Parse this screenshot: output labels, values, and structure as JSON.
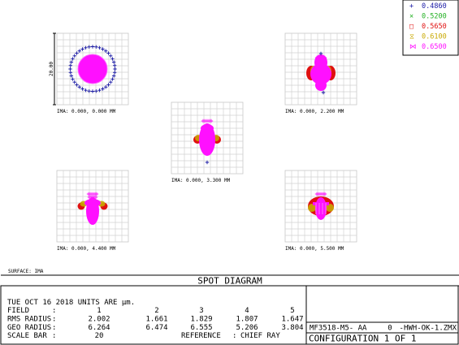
{
  "chart_data": {
    "type": "scatter",
    "title": "SPOT DIAGRAM",
    "wavelengths": [
      {
        "marker": "+",
        "value": "0.4860",
        "color": "#1a1aa6"
      },
      {
        "marker": "×",
        "value": "0.5200",
        "color": "#22b022"
      },
      {
        "marker": "□",
        "value": "0.5650",
        "color": "#e01010"
      },
      {
        "marker": "⧖",
        "value": "0.6100",
        "color": "#c8a800"
      },
      {
        "marker": "⋈",
        "value": "0.6500",
        "color": "#ff10ff"
      }
    ],
    "scale_bar_label": "20.00",
    "fields": [
      {
        "label": "IMA: 0.000, 0.000 MM",
        "field": 1,
        "rms_radius": 2.002,
        "geo_radius": 6.264
      },
      {
        "label": "IMA: 0.000, 2.200 MM",
        "field": 2,
        "rms_radius": 1.661,
        "geo_radius": 6.474
      },
      {
        "label": "IMA: 0.000, 3.300 MM",
        "field": 3,
        "rms_radius": 1.829,
        "geo_radius": 6.555
      },
      {
        "label": "IMA: 0.000, 4.400 MM",
        "field": 4,
        "rms_radius": 1.807,
        "geo_radius": 5.206
      },
      {
        "label": "IMA: 0.000, 5.500 MM",
        "field": 5,
        "rms_radius": 1.647,
        "geo_radius": 3.804
      }
    ],
    "surface_label": "SURFACE: IMA"
  },
  "info": {
    "date_line": "TUE OCT 16 2018   UNITS ARE µm.",
    "rows": [
      {
        "label": "FIELD",
        "sep": ":",
        "values": [
          "1",
          "2",
          "3",
          "4",
          "5"
        ]
      },
      {
        "label": "RMS RADIUS",
        "sep": ":",
        "values": [
          "2.002",
          "1.661",
          "1.829",
          "1.807",
          "1.647"
        ]
      },
      {
        "label": "GEO RADIUS",
        "sep": ":",
        "values": [
          "6.264",
          "6.474",
          "6.555",
          "5.206",
          "3.804"
        ]
      }
    ],
    "scale_bar_label": "SCALE BAR",
    "scale_bar_sep": ":",
    "scale_bar_value": "20",
    "reference_label": "REFERENCE",
    "reference_sep": ":",
    "reference_value": "CHIEF RAY",
    "file_name": "MF3518-M5- AA",
    "config_num": "0",
    "file_ref": "-HWH-OK-1.ZMX",
    "configuration": "CONFIGURATION  1  OF  1"
  }
}
